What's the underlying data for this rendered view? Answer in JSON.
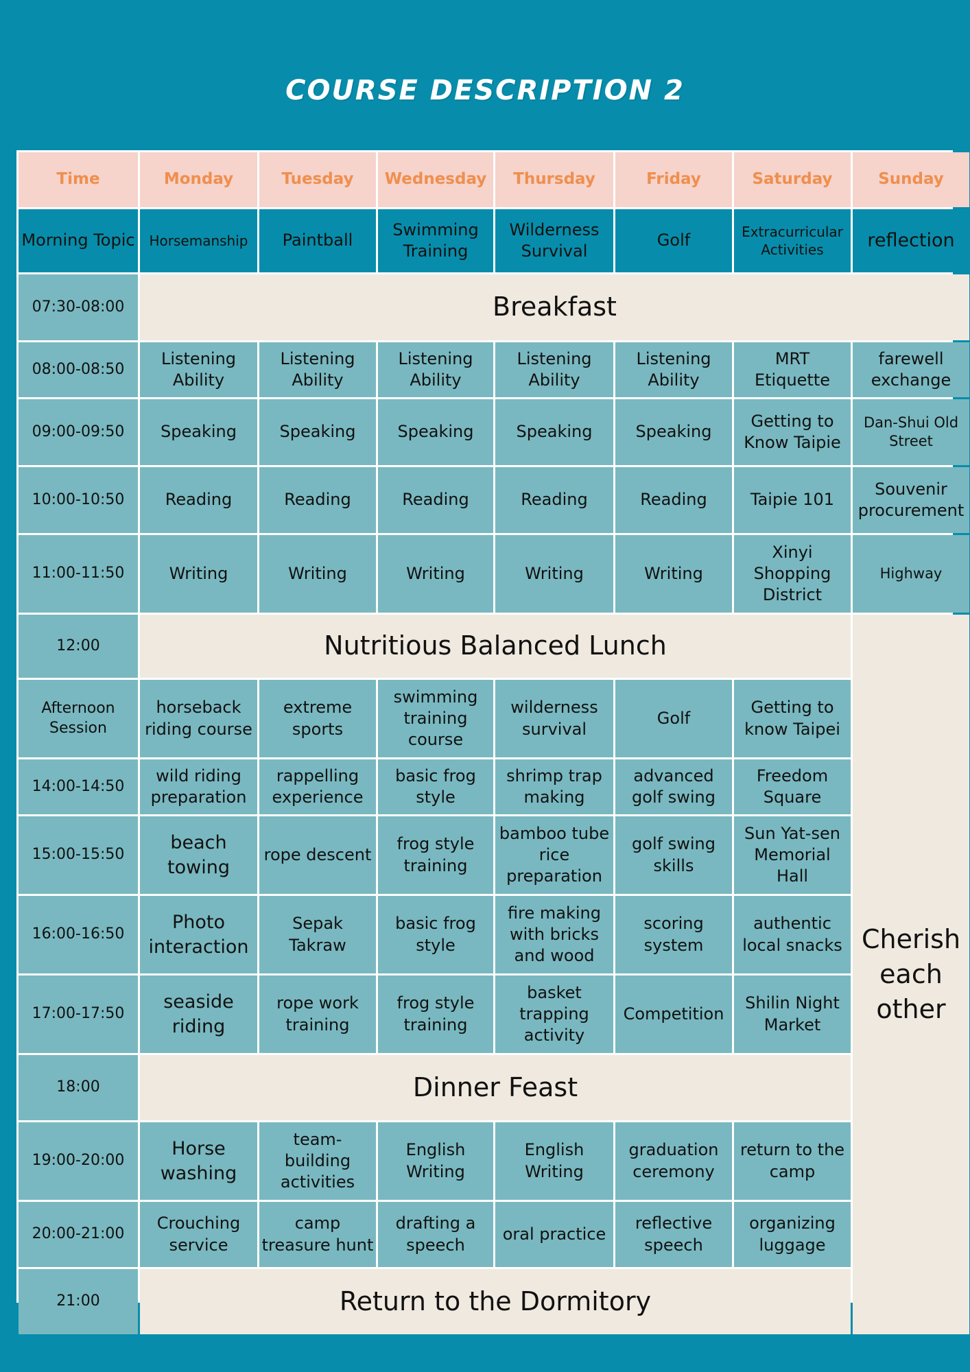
{
  "title": "COURSE DESCRIPTION 2",
  "header": [
    "Time",
    "Monday",
    "Tuesday",
    "Wednesday",
    "Thursday",
    "Friday",
    "Saturday",
    "Sunday"
  ],
  "topics": {
    "label": "Morning Topic",
    "days": [
      "Horsemanship",
      "Paintball",
      "Swimming Training",
      "Wilderness Survival",
      "Golf",
      "Extracurricular Activities",
      "reflection"
    ]
  },
  "breakfast": {
    "time": "07:30-08:00",
    "label": "Breakfast"
  },
  "morning_rows": [
    {
      "time": "08:00-08:50",
      "cells": [
        "Listening Ability",
        "Listening Ability",
        "Listening Ability",
        "Listening Ability",
        "Listening Ability",
        "MRT Etiquette",
        "farewell exchange"
      ]
    },
    {
      "time": "09:00-09:50",
      "cells": [
        "Speaking",
        "Speaking",
        "Speaking",
        "Speaking",
        "Speaking",
        "Getting to Know Taipie",
        "Dan-Shui Old Street"
      ]
    },
    {
      "time": "10:00-10:50",
      "cells": [
        "Reading",
        "Reading",
        "Reading",
        "Reading",
        "Reading",
        "Taipie 101",
        "Souvenir procurement"
      ]
    },
    {
      "time": "11:00-11:50",
      "cells": [
        "Writing",
        "Writing",
        "Writing",
        "Writing",
        "Writing",
        "Xinyi Shopping District",
        "Highway"
      ]
    }
  ],
  "lunch": {
    "time": "12:00",
    "label": "Nutritious Balanced Lunch"
  },
  "afternoon_rows": [
    {
      "time": "Afternoon Session",
      "cells": [
        "horseback riding course",
        "extreme sports",
        "swimming training course",
        "wilderness survival",
        "Golf",
        "Getting to know Taipei"
      ]
    },
    {
      "time": "14:00-14:50",
      "cells": [
        "wild riding preparation",
        "rappelling experience",
        "basic frog style",
        "shrimp trap making",
        "advanced golf swing",
        "Freedom Square"
      ]
    },
    {
      "time": "15:00-15:50",
      "cells": [
        "beach towing",
        "rope descent",
        "frog style training",
        "bamboo tube rice preparation",
        "golf swing skills",
        "Sun Yat-sen Memorial Hall"
      ]
    },
    {
      "time": "16:00-16:50",
      "cells": [
        "Photo interaction",
        "Sepak Takraw",
        "basic frog style",
        "fire making with bricks and wood",
        "scoring system",
        "authentic local snacks"
      ]
    },
    {
      "time": "17:00-17:50",
      "cells": [
        "seaside riding",
        "rope work training",
        "frog style training",
        "basket trapping activity",
        "Competition",
        "Shilin Night Market"
      ]
    }
  ],
  "dinner": {
    "time": "18:00",
    "label": "Dinner Feast"
  },
  "evening_rows": [
    {
      "time": "19:00-20:00",
      "cells": [
        "Horse washing",
        "team-building activities",
        "English Writing",
        "English Writing",
        "graduation ceremony",
        "return to the camp"
      ]
    },
    {
      "time": "20:00-21:00",
      "cells": [
        "Crouching service",
        "camp treasure hunt",
        "drafting a speech",
        "oral practice",
        "reflective speech",
        "organizing luggage"
      ]
    }
  ],
  "dorm": {
    "time": "21:00",
    "label": "Return to the Dormitory"
  },
  "sunday_afternoon": "Cherish each other",
  "colors": {
    "background": "#078DAB",
    "header_bg": "#F6D3CB",
    "header_text": "#EF8F4E",
    "cell_bg": "#79B8C0",
    "span_bg": "#F0E9DF"
  }
}
